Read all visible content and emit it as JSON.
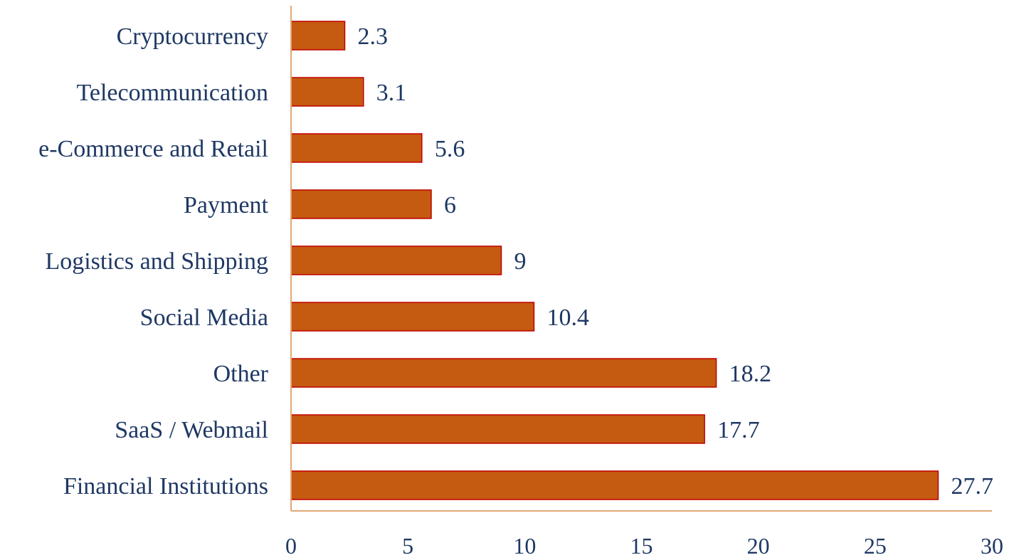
{
  "chart_data": {
    "type": "bar",
    "orientation": "horizontal",
    "categories": [
      "Cryptocurrency",
      "Telecommunication",
      "e-Commerce and Retail",
      "Payment",
      "Logistics and Shipping",
      "Social Media",
      "Other",
      "SaaS / Webmail",
      "Financial Institutions"
    ],
    "values": [
      2.3,
      3.1,
      5.6,
      6,
      9,
      10.4,
      18.2,
      17.7,
      27.7
    ],
    "value_labels": [
      "2.3",
      "3.1",
      "5.6",
      "6",
      "9",
      "10.4",
      "18.2",
      "17.7",
      "27.7"
    ],
    "title": "",
    "xlabel": "",
    "ylabel": "",
    "xlim": [
      0,
      30
    ],
    "x_ticks": [
      "0",
      "5",
      "10",
      "15",
      "20",
      "25",
      "30"
    ],
    "grid": false,
    "legend": "none",
    "colors": {
      "bar_fill": "#c55a11",
      "bar_stroke": "#c00000",
      "axis": "#e0a878",
      "text": "#1f3864"
    }
  }
}
